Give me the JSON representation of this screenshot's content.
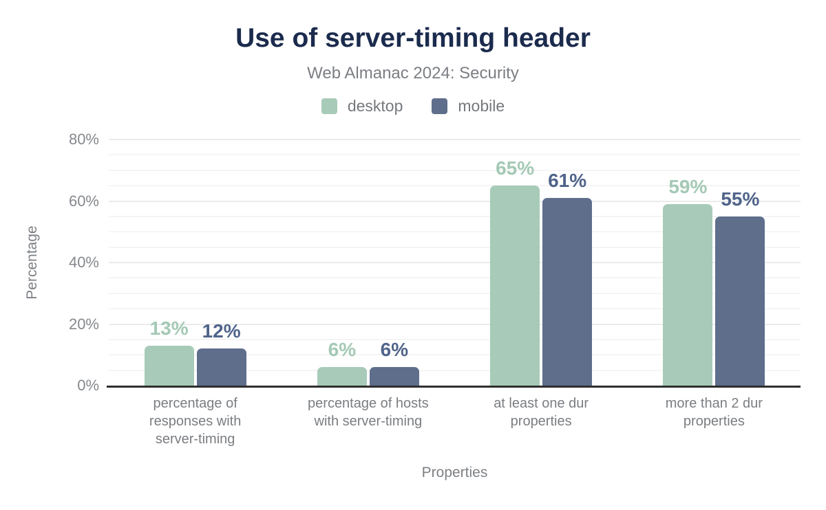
{
  "chart_data": {
    "type": "bar",
    "title": "Use of server-timing header",
    "subtitle": "Web Almanac 2024: Security",
    "xlabel": "Properties",
    "ylabel": "Percentage",
    "ylim": [
      0,
      80
    ],
    "yticks": [
      {
        "value": 0,
        "label": "0%"
      },
      {
        "value": 20,
        "label": "20%"
      },
      {
        "value": 40,
        "label": "40%"
      },
      {
        "value": 60,
        "label": "60%"
      },
      {
        "value": 80,
        "label": "80%"
      }
    ],
    "minor_gridline_step": 5,
    "grid": true,
    "legend_position": "top",
    "categories": [
      "percentage of responses with server-timing",
      "percentage of hosts with server-timing",
      "at least one dur properties",
      "more than 2 dur properties"
    ],
    "series": [
      {
        "name": "desktop",
        "color": "#a7cbb8",
        "label_color": "#a4c9b5",
        "values": [
          13,
          6,
          65,
          59
        ],
        "labels": [
          "13%",
          "6%",
          "65%",
          "59%"
        ]
      },
      {
        "name": "mobile",
        "color": "#5e6e8b",
        "label_color": "#50648a",
        "values": [
          12,
          6,
          61,
          55
        ],
        "labels": [
          "12%",
          "6%",
          "61%",
          "55%"
        ]
      }
    ],
    "colors": {
      "title": "#1b2b4d",
      "subtitle": "#7b7e83",
      "axis_line": "#2e2e2e",
      "tick_label": "#85888d",
      "grid_major": "#ebebeb",
      "grid_minor": "#f5f5f5"
    }
  }
}
